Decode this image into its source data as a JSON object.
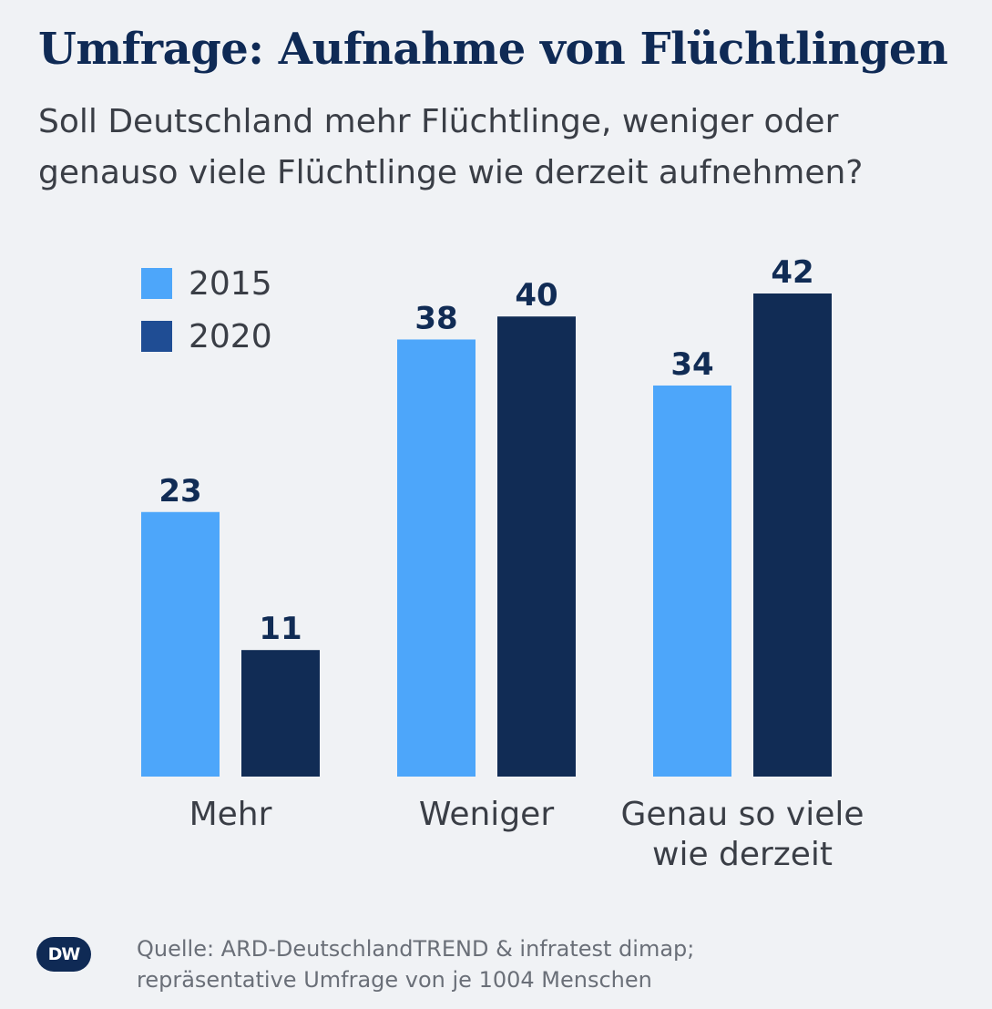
{
  "header": {
    "title": "Umfrage: Aufnahme von Flüchtlingen",
    "subtitle_line1": "Soll Deutschland mehr Flüchtlinge, weniger oder",
    "subtitle_line2": "genauso viele Flüchtlinge wie derzeit aufnehmen?"
  },
  "legend": {
    "items": [
      {
        "label": "2015",
        "color": "#4da6fa"
      },
      {
        "label": "2020",
        "color": "#1f4d94"
      }
    ]
  },
  "categories_display": [
    {
      "lines": [
        "Mehr"
      ]
    },
    {
      "lines": [
        "Weniger"
      ]
    },
    {
      "lines": [
        "Genau so viele",
        "wie derzeit"
      ]
    }
  ],
  "footer": {
    "logo_text": "DW",
    "source_line1": "Quelle: ARD-DeutschlandTREND & infratest dimap;",
    "source_line2": "repräsentative Umfrage von je 1004 Menschen"
  },
  "chart_data": {
    "type": "bar",
    "title": "Umfrage: Aufnahme von Flüchtlingen",
    "subtitle": "Soll Deutschland mehr Flüchtlinge, weniger oder genauso viele Flüchtlinge wie derzeit aufnehmen?",
    "categories": [
      "Mehr",
      "Weniger",
      "Genau so viele wie derzeit"
    ],
    "series": [
      {
        "name": "2015",
        "values": [
          23,
          38,
          34
        ],
        "color": "#4da6fa"
      },
      {
        "name": "2020",
        "values": [
          11,
          40,
          42
        ],
        "color": "#112c55"
      }
    ],
    "xlabel": "",
    "ylabel": "",
    "ylim": [
      0,
      42
    ],
    "grid": false,
    "legend_position": "top-left",
    "data_labels": true
  }
}
